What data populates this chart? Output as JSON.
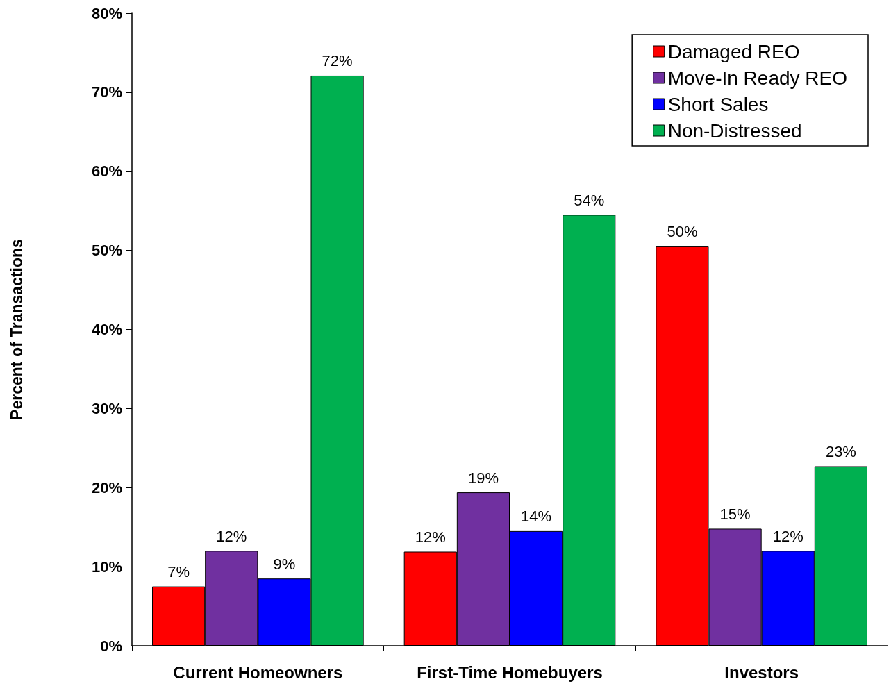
{
  "chart_data": {
    "type": "bar",
    "ylabel": "Percent of Transactions",
    "categories": [
      "Current Homeowners",
      "First-Time Homebuyers",
      "Investors"
    ],
    "series": [
      {
        "name": "Damaged REO",
        "color": "#ff0000",
        "values": [
          7.5,
          11.9,
          50.5
        ],
        "value_labels": [
          "7%",
          "12%",
          "50%"
        ]
      },
      {
        "name": "Move-In Ready REO",
        "color": "#7030a0",
        "values": [
          12.0,
          19.4,
          14.8
        ],
        "value_labels": [
          "12%",
          "19%",
          "15%"
        ]
      },
      {
        "name": "Short Sales",
        "color": "#0000ff",
        "values": [
          8.5,
          14.5,
          12.0
        ],
        "value_labels": [
          "9%",
          "14%",
          "12%"
        ]
      },
      {
        "name": "Non-Distressed",
        "color": "#00b050",
        "values": [
          72.1,
          54.5,
          22.7
        ],
        "value_labels": [
          "72%",
          "54%",
          "23%"
        ]
      }
    ],
    "ylim": [
      0,
      80
    ],
    "yticks": [
      {
        "value": 0,
        "label": "0%"
      },
      {
        "value": 10,
        "label": "10%"
      },
      {
        "value": 20,
        "label": "20%"
      },
      {
        "value": 30,
        "label": "30%"
      },
      {
        "value": 40,
        "label": "40%"
      },
      {
        "value": 50,
        "label": "50%"
      },
      {
        "value": 60,
        "label": "60%"
      },
      {
        "value": 70,
        "label": "70%"
      },
      {
        "value": 80,
        "label": "80%"
      }
    ],
    "grid": false,
    "legend": "top right"
  }
}
